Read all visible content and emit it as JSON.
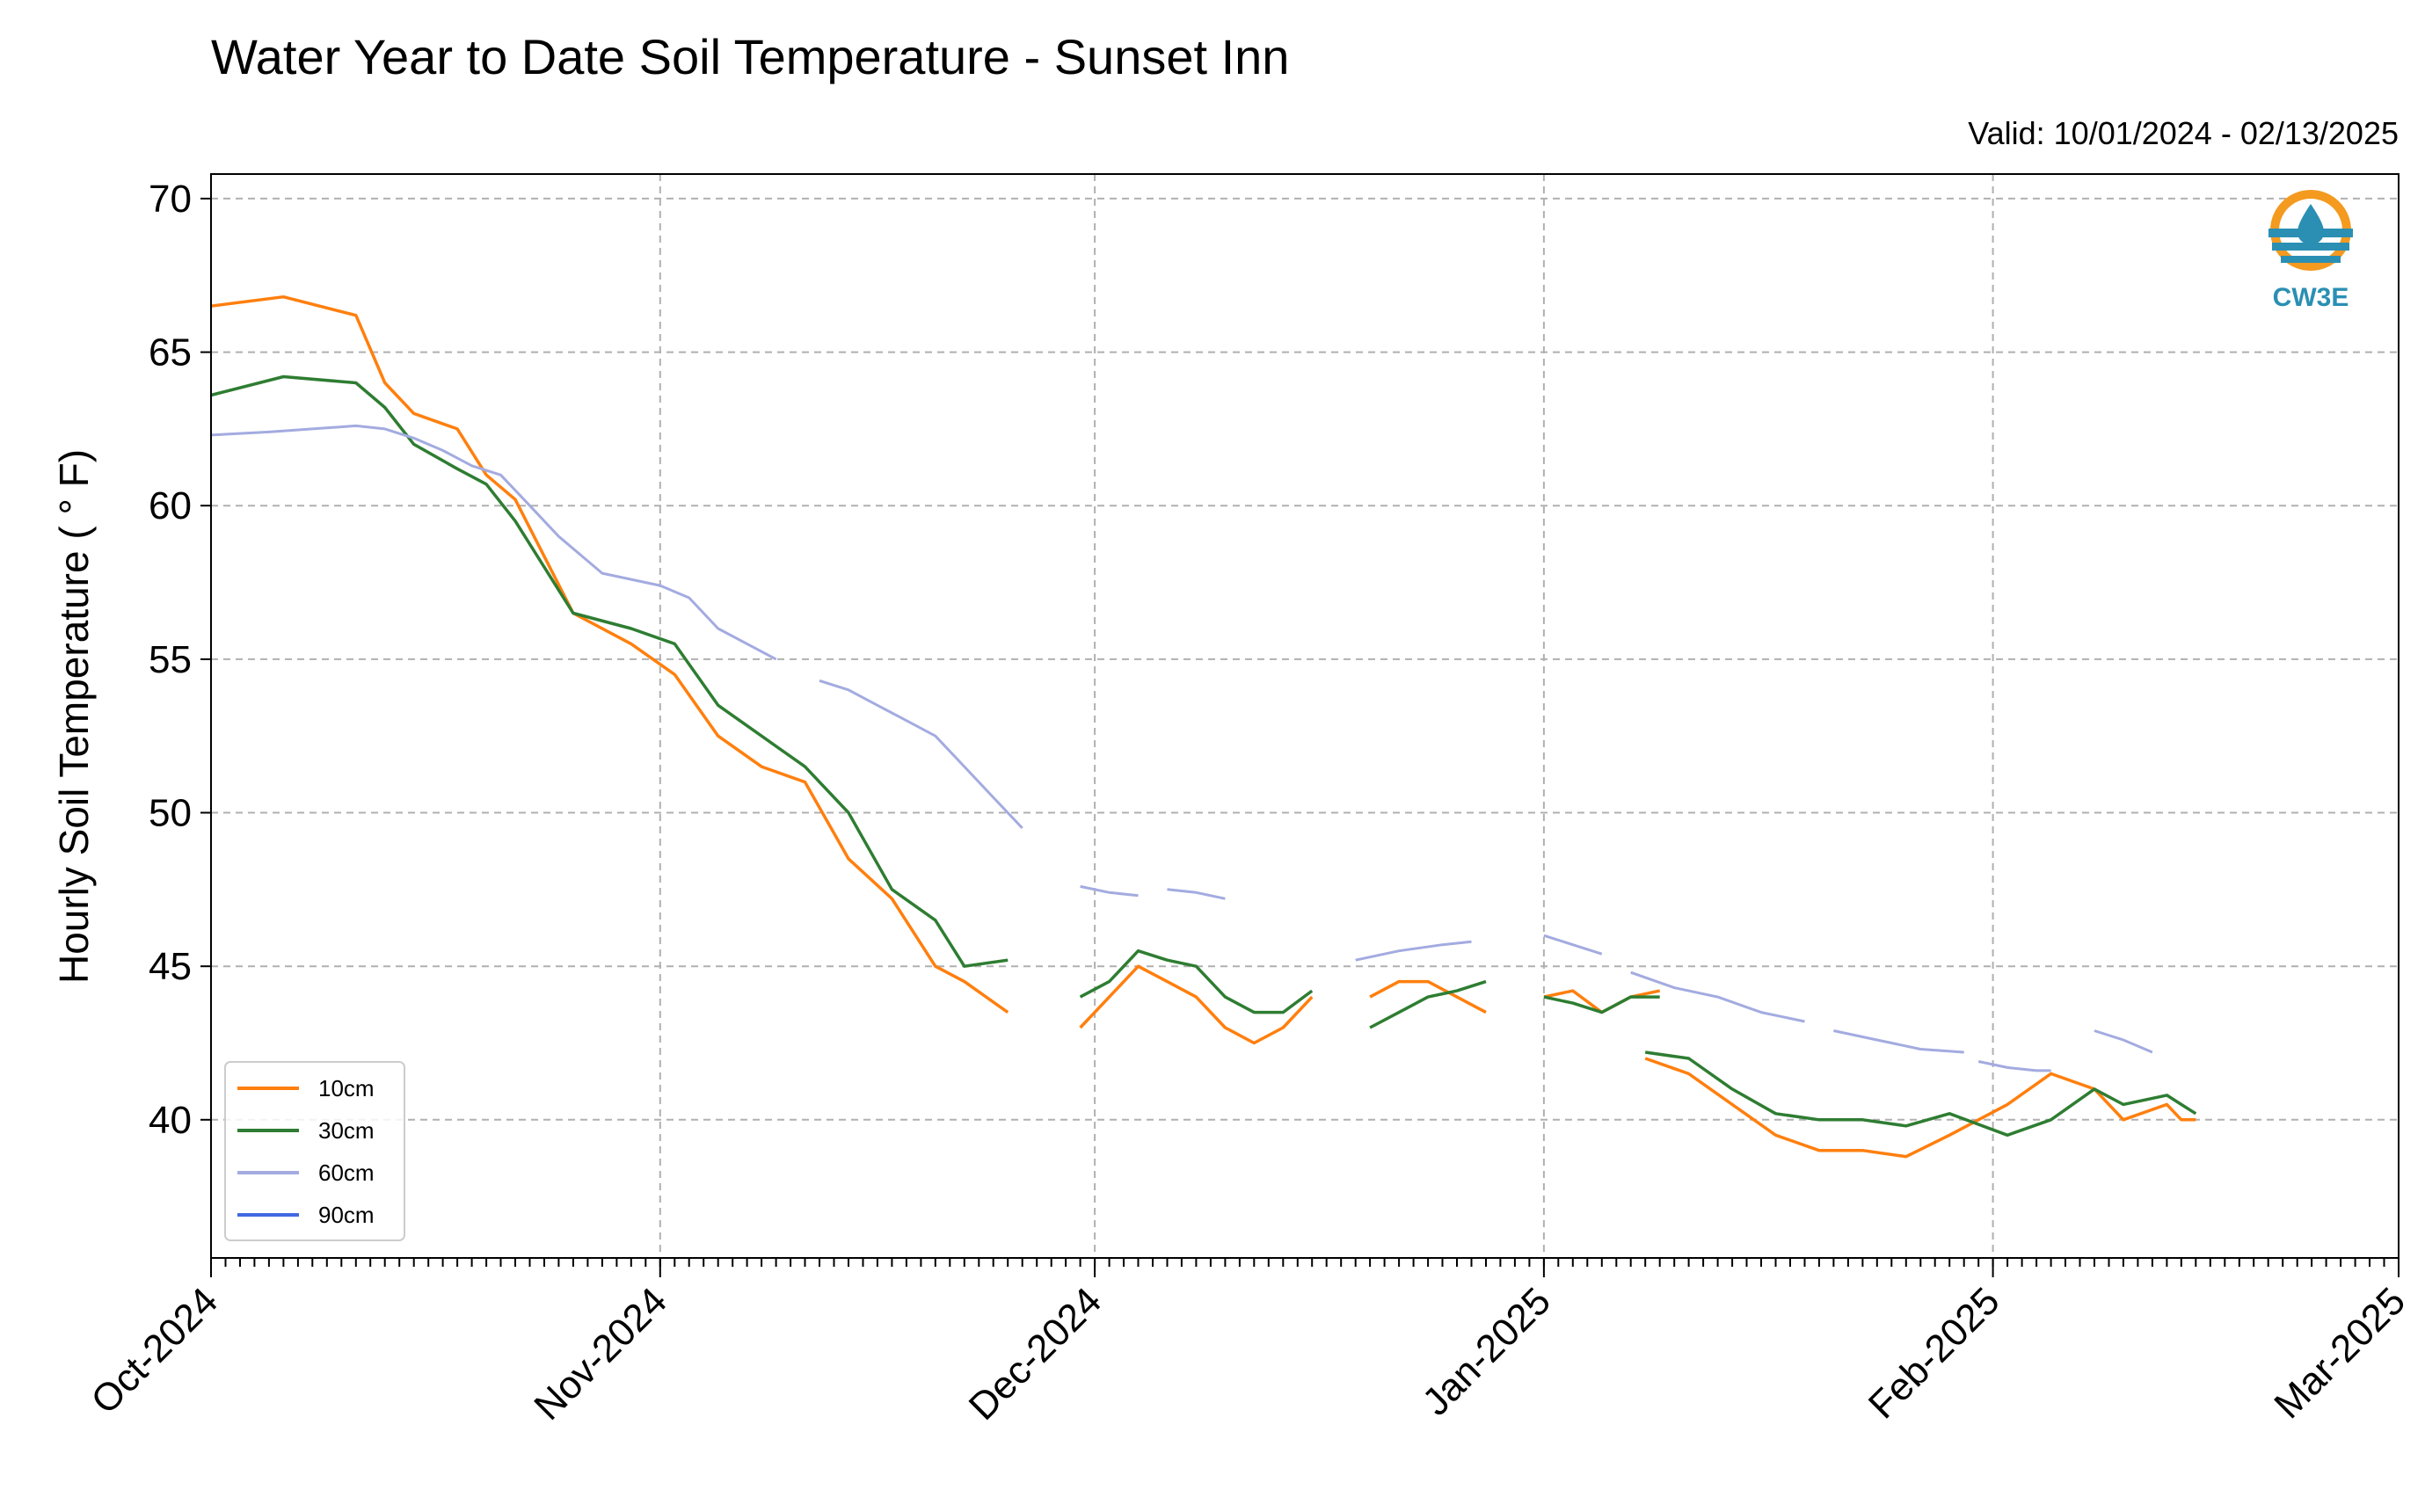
{
  "chart_data": {
    "type": "line",
    "title": "Water Year to Date Soil Temperature - Sunset Inn",
    "subtitle": "Valid: 10/01/2024 - 02/13/2025",
    "xlabel": "",
    "ylabel": "Hourly Soil Temperature ( ° F)",
    "x_ticks": [
      "Oct-2024",
      "Nov-2024",
      "Dec-2024",
      "Jan-2025",
      "Feb-2025",
      "Mar-2025"
    ],
    "x_range": [
      "2024-10-01",
      "2025-03-01"
    ],
    "ylim": [
      35.5,
      70.8
    ],
    "y_ticks": [
      40,
      45,
      50,
      55,
      60,
      65,
      70
    ],
    "grid": true,
    "legend_position": "lower-left",
    "logo_text": "CW3E",
    "series": [
      {
        "name": "10cm",
        "color": "#ff7f0e",
        "x": [
          "2024-10-01",
          "2024-10-06",
          "2024-10-11",
          "2024-10-13",
          "2024-10-15",
          "2024-10-18",
          "2024-10-20",
          "2024-10-22",
          "2024-10-26",
          "2024-10-30",
          "2024-11-02",
          "2024-11-05",
          "2024-11-08",
          "2024-11-11",
          "2024-11-14",
          "2024-11-17",
          "2024-11-20",
          "2024-11-22",
          "2024-11-25",
          "null",
          "2024-11-30",
          "2024-12-02",
          "2024-12-04",
          "2024-12-06",
          "2024-12-08",
          "2024-12-10",
          "2024-12-12",
          "2024-12-14",
          "2024-12-16",
          "null",
          "2024-12-20",
          "2024-12-22",
          "2024-12-24",
          "2024-12-26",
          "2024-12-28",
          "null",
          "2025-01-01",
          "2025-01-03",
          "2025-01-05",
          "2025-01-07",
          "2025-01-09",
          "null",
          "2025-01-08",
          "2025-01-11",
          "2025-01-14",
          "2025-01-17",
          "2025-01-20",
          "2025-01-23",
          "2025-01-26",
          "2025-01-29",
          "2025-02-02",
          "2025-02-05",
          "2025-02-08",
          "2025-02-10",
          "2025-02-13",
          "2025-02-14",
          "2025-02-15"
        ],
        "y": [
          66.5,
          66.8,
          66.2,
          64.0,
          63.0,
          62.5,
          61.0,
          60.2,
          56.5,
          55.5,
          54.5,
          52.5,
          51.5,
          51.0,
          48.5,
          47.2,
          45.0,
          44.5,
          43.5,
          null,
          43.0,
          44.0,
          45.0,
          44.5,
          44.0,
          43.0,
          42.5,
          43.0,
          44.0,
          null,
          44.0,
          44.5,
          44.5,
          44.0,
          43.5,
          null,
          44.0,
          44.2,
          43.5,
          44.0,
          44.2,
          null,
          42.0,
          41.5,
          40.5,
          39.5,
          39.0,
          39.0,
          38.8,
          39.5,
          40.5,
          41.5,
          41.0,
          40.0,
          40.5,
          40.0,
          40.0
        ]
      },
      {
        "name": "30cm",
        "color": "#2e7d32",
        "x": [
          "2024-10-01",
          "2024-10-06",
          "2024-10-11",
          "2024-10-13",
          "2024-10-15",
          "2024-10-18",
          "2024-10-20",
          "2024-10-22",
          "2024-10-26",
          "2024-10-30",
          "2024-11-02",
          "2024-11-05",
          "2024-11-08",
          "2024-11-11",
          "2024-11-14",
          "2024-11-17",
          "2024-11-20",
          "2024-11-22",
          "2024-11-25",
          "null",
          "2024-11-30",
          "2024-12-02",
          "2024-12-04",
          "2024-12-06",
          "2024-12-08",
          "2024-12-10",
          "2024-12-12",
          "2024-12-14",
          "2024-12-16",
          "null",
          "2024-12-20",
          "2024-12-22",
          "2024-12-24",
          "2024-12-26",
          "2024-12-28",
          "null",
          "2025-01-01",
          "2025-01-03",
          "2025-01-05",
          "2025-01-07",
          "2025-01-09",
          "null",
          "2025-01-08",
          "2025-01-11",
          "2025-01-14",
          "2025-01-17",
          "2025-01-20",
          "2025-01-23",
          "2025-01-26",
          "2025-01-29",
          "2025-02-02",
          "2025-02-05",
          "2025-02-08",
          "2025-02-10",
          "2025-02-13",
          "2025-02-14",
          "2025-02-15"
        ],
        "y": [
          63.6,
          64.2,
          64.0,
          63.2,
          62.0,
          61.2,
          60.7,
          59.5,
          56.5,
          56.0,
          55.5,
          53.5,
          52.5,
          51.5,
          50.0,
          47.5,
          46.5,
          45.0,
          45.2,
          null,
          44.0,
          44.5,
          45.5,
          45.2,
          45.0,
          44.0,
          43.5,
          43.5,
          44.2,
          null,
          43.0,
          43.5,
          44.0,
          44.2,
          44.5,
          null,
          44.0,
          43.8,
          43.5,
          44.0,
          44.0,
          null,
          42.2,
          42.0,
          41.0,
          40.2,
          40.0,
          40.0,
          39.8,
          40.2,
          39.5,
          40.0,
          41.0,
          40.5,
          40.8,
          40.5,
          40.2
        ]
      },
      {
        "name": "60cm",
        "color": "#a3abe0",
        "x": [
          "2024-10-01",
          "2024-10-05",
          "2024-10-08",
          "2024-10-11",
          "2024-10-13",
          "2024-10-15",
          "2024-10-17",
          "2024-10-19",
          "2024-10-21",
          "2024-10-23",
          "2024-10-25",
          "2024-10-28",
          "2024-10-30",
          "2024-11-01",
          "2024-11-03",
          "2024-11-05",
          "2024-11-07",
          "2024-11-09",
          "null",
          "2024-11-12",
          "2024-11-14",
          "2024-11-16",
          "2024-11-18",
          "2024-11-20",
          "2024-11-22",
          "2024-11-24",
          "2024-11-26",
          "null",
          "2024-11-30",
          "2024-12-02",
          "2024-12-04",
          "null",
          "2024-12-06",
          "2024-12-08",
          "2024-12-10",
          "null",
          "2024-12-19",
          "2024-12-22",
          "2024-12-25",
          "2024-12-27",
          "null",
          "2025-01-01",
          "2025-01-03",
          "2025-01-05",
          "null",
          "2025-01-07",
          "2025-01-10",
          "2025-01-13",
          "2025-01-16",
          "2025-01-19",
          "null",
          "2025-01-21",
          "2025-01-24",
          "2025-01-27",
          "2025-01-30",
          "null",
          "2025-01-31",
          "2025-02-02",
          "2025-02-04",
          "2025-02-05",
          "null",
          "2025-02-08",
          "2025-02-10",
          "2025-02-12"
        ],
        "y": [
          62.3,
          62.4,
          62.5,
          62.6,
          62.5,
          62.2,
          61.8,
          61.3,
          61.0,
          60.0,
          59.0,
          57.8,
          57.6,
          57.4,
          57.0,
          56.0,
          55.5,
          55.0,
          null,
          54.3,
          54.0,
          53.5,
          53.0,
          52.5,
          51.5,
          50.5,
          49.5,
          null,
          47.6,
          47.4,
          47.3,
          null,
          47.5,
          47.4,
          47.2,
          null,
          45.2,
          45.5,
          45.7,
          45.8,
          null,
          46.0,
          45.7,
          45.4,
          null,
          44.8,
          44.3,
          44.0,
          43.5,
          43.2,
          null,
          42.9,
          42.6,
          42.3,
          42.2,
          null,
          41.9,
          41.7,
          41.6,
          41.6,
          null,
          42.9,
          42.6,
          42.2
        ]
      },
      {
        "name": "90cm",
        "color": "#4169e1",
        "x": [],
        "y": []
      }
    ]
  }
}
